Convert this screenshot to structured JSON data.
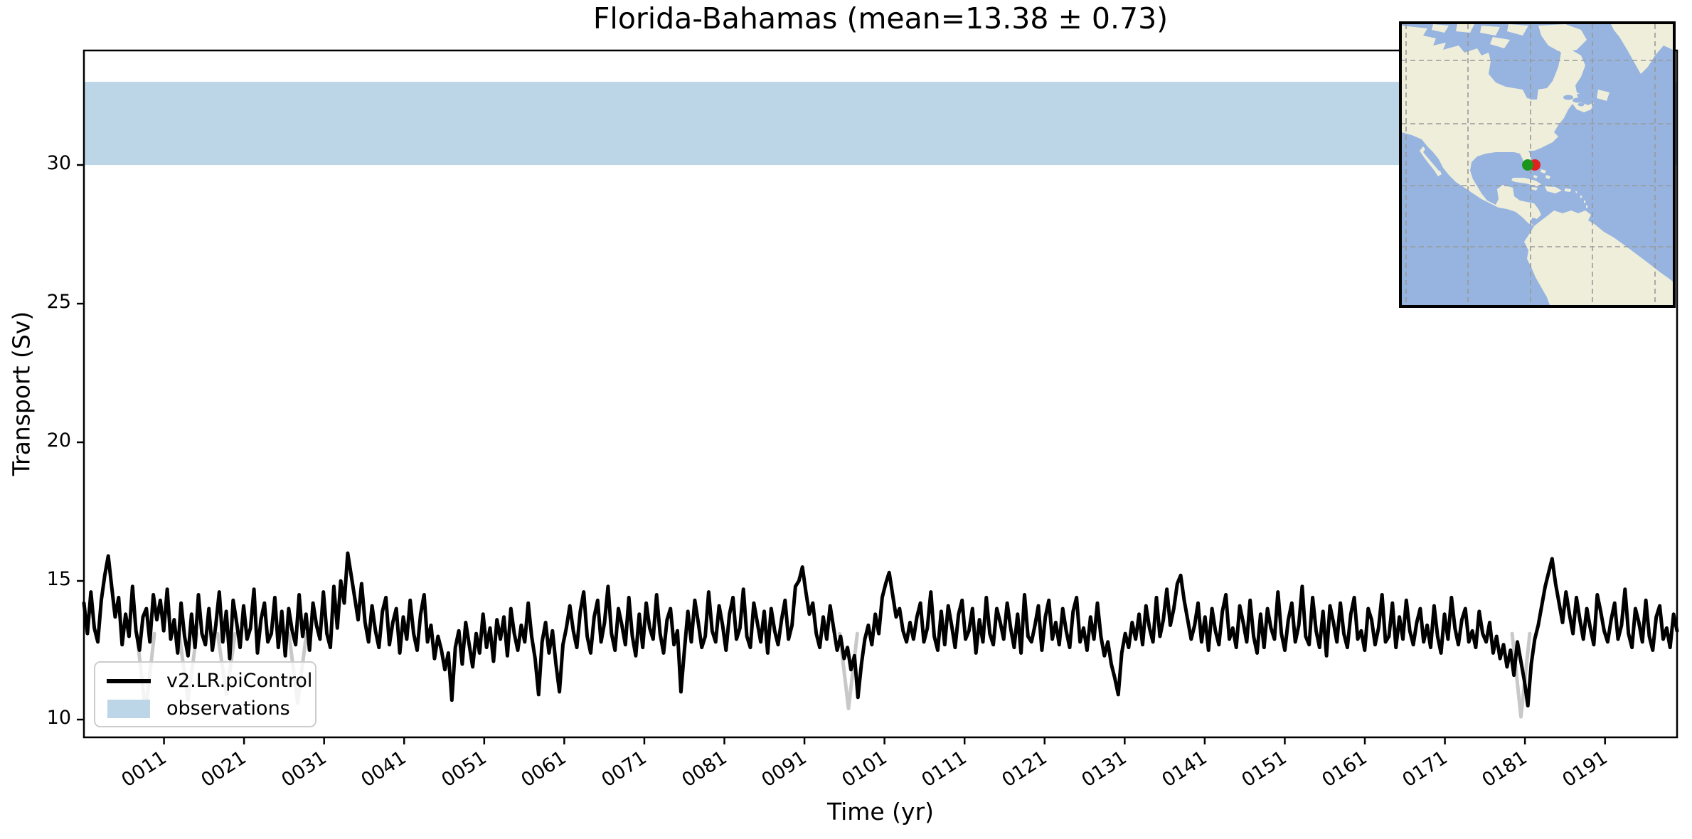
{
  "figure": {
    "title": "Florida-Bahamas (mean=13.38 ± 0.73)",
    "xlabel": "Time (yr)",
    "ylabel": "Transport (Sv)"
  },
  "legend": {
    "items": [
      {
        "label": "v2.LR.piControl",
        "swatch": "line",
        "color": "#000000"
      },
      {
        "label": "observations",
        "swatch": "patch",
        "color": "#bcd6e8"
      }
    ]
  },
  "chart_data": {
    "type": "line",
    "title": "Florida-Bahamas (mean=13.38 ± 0.73)",
    "xlabel": "Time (yr)",
    "ylabel": "Transport (Sv)",
    "stats": {
      "mean": 13.38,
      "std": 0.73
    },
    "xlim": [
      1,
      200
    ],
    "ylim": [
      9.36,
      34.13
    ],
    "grid": false,
    "legend_position": "lower left",
    "yticks": [
      10,
      15,
      20,
      25,
      30
    ],
    "xtick_years": [
      11,
      21,
      31,
      41,
      51,
      61,
      71,
      81,
      91,
      101,
      111,
      121,
      131,
      141,
      151,
      161,
      171,
      181,
      191
    ],
    "xtick_labels": [
      "0011",
      "0021",
      "0031",
      "0041",
      "0051",
      "0061",
      "0071",
      "0081",
      "0091",
      "0101",
      "0111",
      "0121",
      "0131",
      "0141",
      "0151",
      "0161",
      "0171",
      "0181",
      "0191"
    ],
    "observations_band": {
      "label": "observations",
      "low": 30.0,
      "high": 33.0,
      "color": "#bcd6e8"
    },
    "series": [
      {
        "name": "v2.LR.piControl",
        "color": "#000000",
        "line_width": 5,
        "x_start": 1,
        "x_end": 200,
        "values": [
          14.2,
          13.1,
          14.6,
          13.3,
          12.8,
          14.3,
          15.2,
          15.9,
          14.8,
          13.7,
          14.4,
          12.7,
          13.8,
          13.0,
          14.8,
          13.2,
          12.5,
          13.7,
          14.0,
          12.8,
          14.5,
          13.6,
          14.3,
          13.2,
          14.7,
          12.9,
          13.6,
          12.4,
          14.2,
          13.0,
          12.3,
          13.8,
          12.6,
          14.5,
          13.1,
          12.7,
          14.0,
          12.5,
          13.4,
          14.6,
          12.8,
          13.9,
          12.2,
          14.3,
          13.5,
          12.6,
          14.1,
          12.9,
          13.3,
          14.7,
          12.4,
          13.6,
          14.2,
          12.8,
          13.1,
          14.4,
          12.6,
          13.9,
          12.3,
          14.0,
          13.2,
          12.7,
          14.5,
          13.0,
          13.8,
          12.5,
          14.2,
          13.4,
          12.9,
          14.6,
          13.1,
          12.6,
          14.8,
          13.3,
          15.0,
          14.2,
          16.0,
          15.2,
          14.4,
          13.6,
          14.9,
          13.5,
          12.8,
          14.1,
          13.2,
          12.6,
          13.9,
          14.4,
          12.7,
          13.5,
          14.0,
          12.4,
          13.7,
          12.9,
          14.3,
          13.1,
          12.5,
          13.8,
          14.5,
          12.8,
          13.4,
          12.2,
          13.0,
          12.5,
          11.8,
          12.4,
          10.7,
          12.6,
          13.2,
          12.0,
          13.5,
          12.7,
          11.9,
          13.1,
          12.4,
          13.8,
          12.6,
          13.3,
          12.1,
          13.6,
          12.9,
          13.7,
          12.3,
          14.0,
          13.1,
          12.5,
          13.4,
          12.8,
          14.2,
          13.0,
          12.2,
          10.9,
          12.8,
          13.5,
          12.4,
          13.2,
          12.0,
          11.0,
          12.7,
          13.3,
          14.1,
          13.2,
          12.6,
          13.9,
          14.6,
          13.0,
          12.4,
          13.7,
          14.3,
          12.8,
          13.5,
          14.8,
          13.1,
          12.5,
          14.0,
          13.4,
          12.7,
          14.4,
          13.0,
          12.3,
          13.8,
          12.6,
          14.2,
          13.3,
          12.9,
          14.5,
          13.1,
          12.4,
          13.6,
          14.0,
          12.7,
          13.2,
          11.0,
          12.5,
          13.9,
          12.8,
          14.3,
          13.5,
          12.6,
          13.0,
          14.6,
          13.2,
          12.8,
          14.1,
          13.4,
          12.5,
          13.8,
          14.4,
          12.9,
          13.3,
          14.7,
          13.0,
          12.6,
          14.2,
          13.5,
          12.8,
          13.9,
          12.4,
          14.0,
          13.2,
          12.7,
          13.6,
          14.3,
          12.9,
          13.4,
          14.8,
          15.0,
          15.5,
          14.6,
          13.8,
          14.2,
          13.1,
          12.6,
          13.7,
          12.9,
          14.1,
          13.3,
          12.5,
          13.0,
          12.2,
          12.6,
          11.8,
          12.3,
          10.8,
          12.0,
          12.9,
          13.4,
          12.7,
          13.8,
          13.1,
          14.4,
          14.9,
          15.3,
          14.5,
          13.7,
          14.0,
          13.2,
          12.8,
          13.5,
          12.9,
          13.7,
          14.2,
          12.8,
          13.3,
          14.6,
          13.0,
          12.5,
          13.9,
          12.7,
          14.1,
          13.4,
          12.6,
          13.8,
          14.3,
          12.9,
          13.2,
          14.0,
          12.4,
          13.6,
          12.8,
          14.4,
          13.1,
          12.7,
          14.0,
          13.5,
          12.9,
          14.2,
          13.3,
          12.6,
          13.8,
          12.4,
          14.5,
          13.0,
          12.8,
          13.4,
          14.1,
          12.5,
          13.7,
          14.3,
          12.9,
          13.5,
          12.7,
          14.0,
          13.2,
          12.6,
          13.9,
          14.4,
          12.8,
          13.3,
          12.5,
          13.7,
          12.9,
          14.2,
          13.0,
          12.3,
          12.8,
          12.0,
          11.5,
          10.9,
          12.4,
          13.1,
          12.6,
          13.5,
          12.9,
          13.8,
          12.7,
          14.1,
          13.3,
          12.8,
          14.4,
          13.0,
          13.6,
          14.7,
          13.4,
          14.0,
          14.9,
          15.2,
          14.3,
          13.6,
          12.9,
          13.4,
          14.2,
          12.8,
          13.7,
          12.5,
          14.0,
          13.2,
          12.7,
          13.9,
          14.5,
          12.9,
          13.3,
          12.6,
          14.1,
          13.5,
          12.8,
          14.3,
          13.0,
          12.4,
          13.8,
          12.6,
          14.0,
          13.3,
          12.9,
          14.6,
          13.1,
          12.5,
          13.6,
          14.2,
          12.8,
          13.4,
          14.8,
          13.0,
          12.7,
          14.4,
          13.2,
          12.6,
          13.9,
          12.3,
          14.1,
          13.5,
          12.8,
          14.2,
          13.1,
          12.6,
          13.8,
          14.4,
          12.9,
          13.2,
          12.5,
          14.0,
          13.6,
          12.7,
          13.3,
          14.5,
          12.8,
          13.0,
          14.2,
          12.6,
          13.7,
          12.9,
          14.3,
          13.2,
          12.7,
          13.5,
          14.0,
          12.8,
          13.4,
          12.6,
          14.1,
          13.0,
          12.4,
          13.8,
          12.9,
          14.4,
          13.3,
          12.7,
          13.6,
          14.0,
          12.8,
          13.2,
          12.6,
          13.9,
          13.1,
          12.8,
          13.5,
          12.4,
          13.0,
          12.2,
          12.7,
          11.9,
          12.5,
          11.6,
          12.8,
          12.1,
          11.4,
          10.5,
          12.0,
          12.9,
          13.4,
          14.1,
          14.8,
          15.3,
          15.8,
          14.9,
          14.2,
          13.5,
          14.6,
          13.8,
          13.1,
          14.4,
          13.6,
          12.9,
          14.0,
          13.3,
          12.7,
          14.5,
          13.9,
          13.2,
          12.8,
          13.6,
          14.2,
          12.9,
          13.4,
          14.7,
          13.1,
          12.6,
          14.0,
          13.5,
          12.8,
          14.3,
          13.0,
          12.5,
          13.7,
          14.1,
          12.9,
          13.3,
          12.6,
          13.8,
          13.2
        ]
      }
    ],
    "background_dips": {
      "name": "background-gray-line",
      "color": "#c8c8c8",
      "line_width": 5,
      "points": [
        {
          "year": 8.7,
          "value": 10.3
        },
        {
          "year": 14.0,
          "value": 10.7
        },
        {
          "year": 18.8,
          "value": 10.9
        },
        {
          "year": 27.7,
          "value": 10.6
        },
        {
          "year": 96.5,
          "value": 10.4
        },
        {
          "year": 180.5,
          "value": 10.1
        }
      ]
    }
  },
  "map_inset": {
    "ocean_color": "#96b4df",
    "land_color": "#efeeda",
    "lake_color": "#96b4df",
    "grid_color": "#999999",
    "border_color": "#000000",
    "markers": [
      {
        "name": "green-marker",
        "color": "#1b961b",
        "x": 177,
        "y": 198,
        "r": 8
      },
      {
        "name": "red-marker",
        "color": "#e32020",
        "x": 187,
        "y": 198,
        "r": 8
      }
    ]
  }
}
